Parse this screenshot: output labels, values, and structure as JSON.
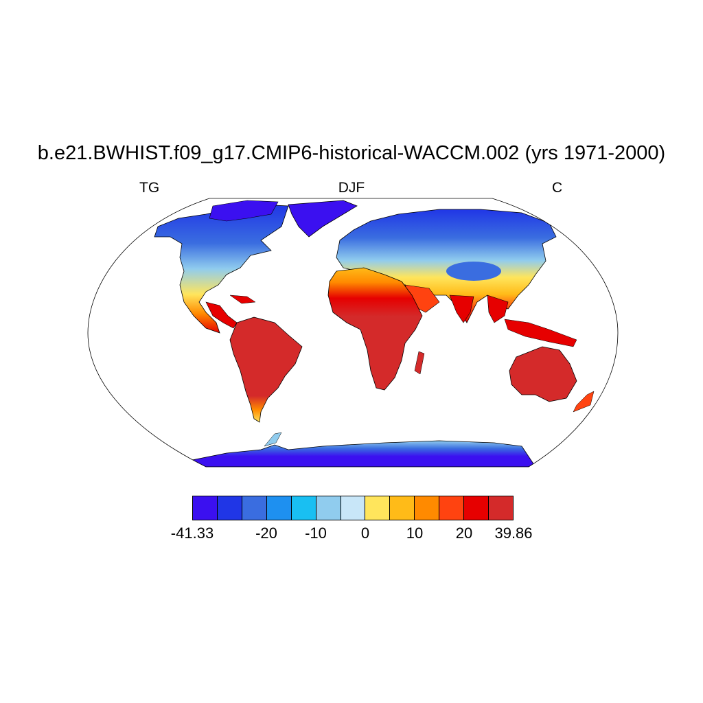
{
  "title": "b.e21.BWHIST.f09_g17.CMIP6-historical-WACCM.002 (yrs 1971-2000)",
  "left_label": "TG",
  "center_label": "DJF",
  "right_label": "C",
  "colorbar": {
    "colors": [
      "#3b10f0",
      "#2036e6",
      "#3a6de0",
      "#1e90f0",
      "#19bff2",
      "#90ccee",
      "#c8e6f8",
      "#ffe55c",
      "#ffbb18",
      "#ff8a00",
      "#ff4310",
      "#e60000",
      "#d42a2a"
    ],
    "tick_labels": [
      "-41.33",
      "-20",
      "-10",
      "0",
      "10",
      "20",
      "39.86"
    ]
  }
}
